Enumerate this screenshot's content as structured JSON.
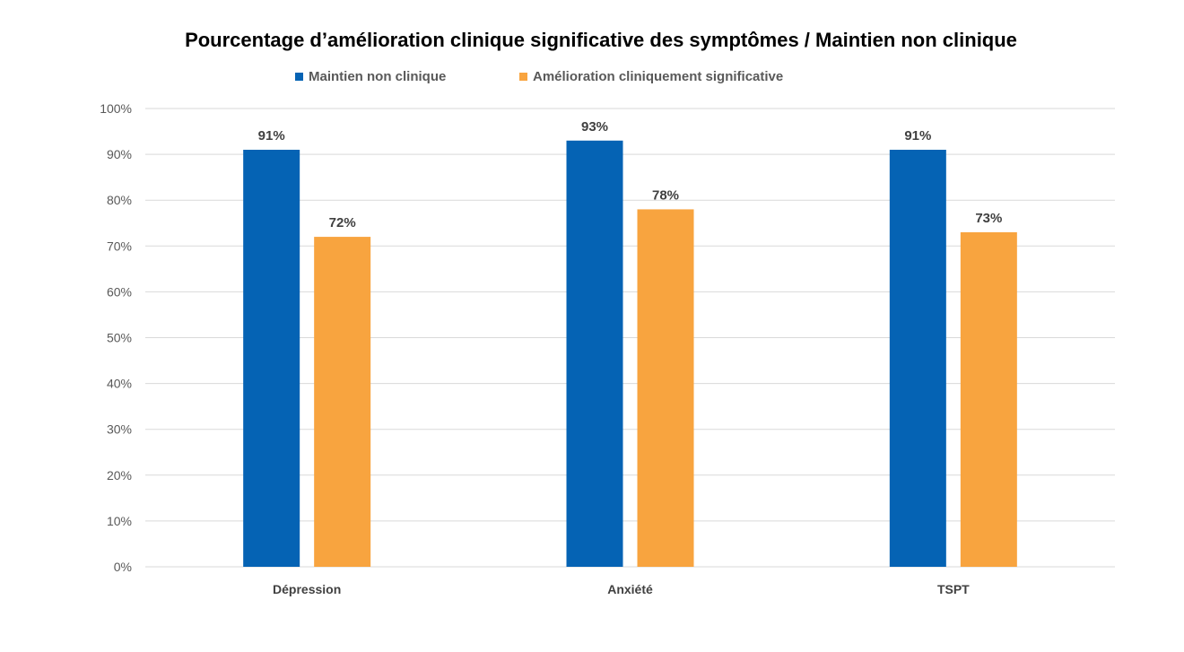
{
  "chart_data": {
    "type": "bar",
    "title": "Pourcentage d’amélioration clinique significative des symptômes / Maintien non clinique",
    "xlabel": "",
    "ylabel": "",
    "categories": [
      "Dépression",
      "Anxiété",
      "TSPT"
    ],
    "series": [
      {
        "name": "Maintien non clinique",
        "color": "#0563B4",
        "values": [
          91,
          93,
          91
        ],
        "labels": [
          "91%",
          "93%",
          "91%"
        ]
      },
      {
        "name": "Amélioration cliniquement significative",
        "color": "#F8A43F",
        "values": [
          72,
          78,
          73
        ],
        "labels": [
          "72%",
          "78%",
          "73%"
        ]
      }
    ],
    "ylim": [
      0,
      100
    ],
    "yticks": [
      0,
      10,
      20,
      30,
      40,
      50,
      60,
      70,
      80,
      90,
      100
    ],
    "ytick_labels": [
      "0%",
      "10%",
      "20%",
      "30%",
      "40%",
      "50%",
      "60%",
      "70%",
      "80%",
      "90%",
      "100%"
    ],
    "grid": true,
    "legend_position": "top",
    "gridline_color": "#D9D9D9",
    "axis_text_color": "#595959",
    "label_text_color": "#404040"
  }
}
